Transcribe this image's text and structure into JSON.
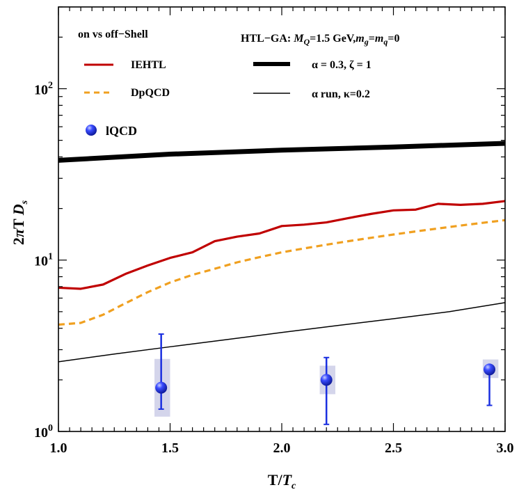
{
  "chart_data": {
    "type": "line",
    "xlabel": "T/T_c",
    "ylabel": "2πT D_s",
    "xlim": [
      1.0,
      3.0
    ],
    "ylim": [
      1,
      300
    ],
    "yscale": "log",
    "x_ticks": [
      "1.0",
      "1.5",
      "2.0",
      "2.5",
      "3.0"
    ],
    "x_tick_values": [
      1.0,
      1.5,
      2.0,
      2.5,
      3.0
    ],
    "y_ticks": [
      {
        "value": 1,
        "base": "10",
        "exp": "0"
      },
      {
        "value": 10,
        "base": "10",
        "exp": "1"
      },
      {
        "value": 100,
        "base": "10",
        "exp": "2"
      }
    ],
    "legend_left": {
      "header": "on vs off−Shell",
      "items": [
        "IEHTL",
        "DpQCD",
        "lQCD"
      ]
    },
    "legend_right": {
      "header": "HTL−GA: M_Q=1.5 GeV, m_g=m_q=0",
      "header_parts": {
        "prefix": "HTL−GA: ",
        "mq_label": "M",
        "mq_sub": "Q",
        "mq_value": "=1.5 GeV,",
        "mg_label": "m",
        "mg_sub": "g",
        "eq": "=",
        "mqq_label": "m",
        "mqq_sub": "q",
        "tail": "=0"
      },
      "items": [
        "α = 0.3, ζ = 1",
        "α run, κ=0.2"
      ]
    },
    "series": [
      {
        "name": "IEHTL",
        "color": "#c00000",
        "style": "solid",
        "x": [
          1.0,
          1.1,
          1.2,
          1.3,
          1.4,
          1.5,
          1.6,
          1.7,
          1.8,
          1.9,
          2.0,
          2.1,
          2.2,
          2.3,
          2.4,
          2.5,
          2.6,
          2.7,
          2.8,
          2.9,
          3.0
        ],
        "y": [
          6.9,
          6.8,
          7.2,
          8.3,
          9.3,
          10.3,
          11.1,
          12.9,
          13.7,
          14.3,
          15.8,
          16.1,
          16.6,
          17.6,
          18.6,
          19.5,
          19.7,
          21.3,
          21.0,
          21.3,
          22.1
        ]
      },
      {
        "name": "DpQCD",
        "color": "#f0a020",
        "style": "dashed",
        "x": [
          1.0,
          1.1,
          1.2,
          1.3,
          1.4,
          1.5,
          1.6,
          1.7,
          1.8,
          1.9,
          2.0,
          2.1,
          2.2,
          2.3,
          2.4,
          2.5,
          2.6,
          2.7,
          2.8,
          2.9,
          3.0
        ],
        "y": [
          4.2,
          4.3,
          4.8,
          5.6,
          6.5,
          7.4,
          8.2,
          8.9,
          9.7,
          10.4,
          11.1,
          11.7,
          12.3,
          12.9,
          13.5,
          14.1,
          14.7,
          15.3,
          15.9,
          16.5,
          17.1
        ]
      },
      {
        "name": "α = 0.3, ζ = 1",
        "color": "#000000",
        "style": "thick",
        "x": [
          1.0,
          1.5,
          2.0,
          2.5,
          3.0
        ],
        "y": [
          38.2,
          41.5,
          43.8,
          45.7,
          48.0
        ]
      },
      {
        "name": "α run, κ=0.2",
        "color": "#000000",
        "style": "thin",
        "x": [
          1.0,
          1.25,
          1.5,
          1.75,
          2.0,
          2.25,
          2.5,
          2.75,
          3.0
        ],
        "y": [
          2.55,
          2.83,
          3.12,
          3.43,
          3.78,
          4.15,
          4.55,
          5.0,
          5.65
        ]
      }
    ],
    "points": {
      "name": "lQCD",
      "color": "#1a2fe0",
      "data": [
        {
          "x": 1.46,
          "y": 1.8,
          "ylo": 1.35,
          "yhi": 3.7,
          "box_x": [
            1.43,
            1.5
          ],
          "box_y": [
            1.22,
            2.65
          ]
        },
        {
          "x": 2.2,
          "y": 2.0,
          "ylo": 1.1,
          "yhi": 2.7,
          "box_x": [
            2.17,
            2.24
          ],
          "box_y": [
            1.65,
            2.42
          ]
        },
        {
          "x": 2.93,
          "y": 2.3,
          "ylo": 1.42,
          "yhi": 2.33,
          "box_x": [
            2.9,
            2.97
          ],
          "box_y": [
            2.05,
            2.63
          ]
        }
      ]
    }
  }
}
